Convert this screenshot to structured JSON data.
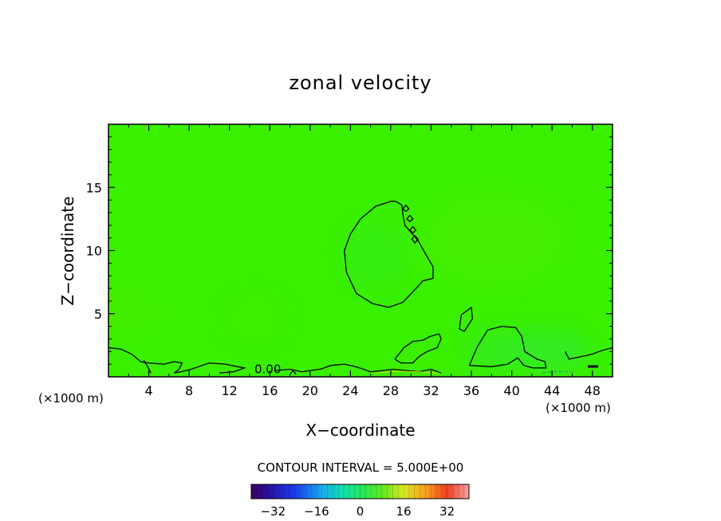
{
  "chart_data": {
    "type": "heatmap",
    "title": "zonal velocity",
    "xlabel": "X−coordinate",
    "ylabel": "Z−coordinate",
    "x_unit_left": "(×1000 m)",
    "x_unit_right": "(×1000 m)",
    "xlim": [
      0,
      50
    ],
    "ylim": [
      0,
      20
    ],
    "x_ticks": [
      4,
      8,
      12,
      16,
      20,
      24,
      28,
      32,
      36,
      40,
      44,
      48
    ],
    "y_ticks": [
      5,
      10,
      15
    ],
    "contour_interval_text": "CONTOUR INTERVAL = 5.000E+00",
    "contour_label": "0.00",
    "contour_label_pos": [
      15.8,
      0.6
    ],
    "field_background_color": "#39f000",
    "colorbar": {
      "range": [
        -40,
        40
      ],
      "ticks": [
        -32,
        -16,
        0,
        16,
        32
      ],
      "tick_labels": [
        "−32",
        "−16",
        "0",
        "16",
        "32"
      ]
    },
    "zero_contours": [
      {
        "name": "upper-blob",
        "points": [
          [
            28.0,
            13.9
          ],
          [
            26.5,
            13.5
          ],
          [
            25.0,
            12.5
          ],
          [
            24.0,
            11.3
          ],
          [
            23.4,
            10.0
          ],
          [
            23.6,
            8.3
          ],
          [
            24.6,
            6.6
          ],
          [
            26.2,
            5.8
          ],
          [
            27.8,
            5.5
          ],
          [
            29.2,
            5.9
          ],
          [
            30.4,
            6.9
          ],
          [
            31.2,
            7.6
          ],
          [
            32.2,
            7.8
          ],
          [
            32.2,
            8.7
          ],
          [
            31.4,
            9.8
          ],
          [
            30.7,
            10.8
          ],
          [
            29.4,
            12.0
          ],
          [
            29.2,
            12.9
          ],
          [
            29.1,
            13.6
          ],
          [
            28.5,
            13.9
          ],
          [
            28.0,
            13.9
          ]
        ]
      },
      {
        "name": "small-circle-1",
        "points": [
          [
            29.5,
            13.6
          ],
          [
            29.2,
            13.3
          ],
          [
            29.5,
            13.1
          ],
          [
            29.8,
            13.3
          ],
          [
            29.5,
            13.6
          ]
        ]
      },
      {
        "name": "small-circle-2",
        "points": [
          [
            29.9,
            12.8
          ],
          [
            29.6,
            12.5
          ],
          [
            29.9,
            12.3
          ],
          [
            30.2,
            12.5
          ],
          [
            29.9,
            12.8
          ]
        ]
      },
      {
        "name": "small-circle-3",
        "points": [
          [
            30.2,
            11.9
          ],
          [
            29.9,
            11.6
          ],
          [
            30.2,
            11.4
          ],
          [
            30.5,
            11.6
          ],
          [
            30.2,
            11.9
          ]
        ]
      },
      {
        "name": "small-circle-4",
        "points": [
          [
            30.4,
            11.2
          ],
          [
            30.1,
            10.9
          ],
          [
            30.4,
            10.6
          ],
          [
            30.7,
            10.9
          ],
          [
            30.4,
            11.2
          ]
        ]
      },
      {
        "name": "mid-blob",
        "points": [
          [
            36.0,
            5.5
          ],
          [
            36.1,
            4.6
          ],
          [
            35.3,
            3.6
          ],
          [
            34.8,
            3.8
          ],
          [
            35.0,
            4.9
          ],
          [
            36.0,
            5.5
          ]
        ]
      },
      {
        "name": "low-wave-1",
        "points": [
          [
            28.4,
            1.4
          ],
          [
            29.3,
            2.3
          ],
          [
            30.2,
            2.8
          ],
          [
            31.2,
            2.9
          ],
          [
            31.9,
            3.2
          ],
          [
            32.8,
            3.4
          ],
          [
            33.0,
            3.0
          ],
          [
            32.6,
            2.3
          ],
          [
            31.6,
            2.0
          ],
          [
            30.8,
            1.6
          ],
          [
            30.2,
            1.1
          ],
          [
            29.0,
            1.1
          ],
          [
            28.4,
            1.4
          ]
        ]
      },
      {
        "name": "low-wave-2",
        "points": [
          [
            35.8,
            0.9
          ],
          [
            36.6,
            2.4
          ],
          [
            37.6,
            3.7
          ],
          [
            39.0,
            4.0
          ],
          [
            40.4,
            3.9
          ],
          [
            41.0,
            3.2
          ],
          [
            41.3,
            2.0
          ],
          [
            42.5,
            1.4
          ],
          [
            43.3,
            1.2
          ],
          [
            43.4,
            0.7
          ],
          [
            42.1,
            0.7
          ],
          [
            41.2,
            0.9
          ],
          [
            40.6,
            1.5
          ],
          [
            39.6,
            1.0
          ],
          [
            38.0,
            0.8
          ],
          [
            35.8,
            0.9
          ]
        ]
      },
      {
        "name": "right-edge",
        "points": [
          [
            45.3,
            2.0
          ],
          [
            45.7,
            1.4
          ],
          [
            46.9,
            1.6
          ],
          [
            48.0,
            1.8
          ],
          [
            49.0,
            2.1
          ],
          [
            50.0,
            2.3
          ]
        ]
      },
      {
        "name": "left-edge",
        "points": [
          [
            0.0,
            2.3
          ],
          [
            1.2,
            2.2
          ],
          [
            2.3,
            1.8
          ],
          [
            3.2,
            1.2
          ],
          [
            4.0,
            1.1
          ],
          [
            5.5,
            1.0
          ],
          [
            6.5,
            1.2
          ],
          [
            7.3,
            1.1
          ],
          [
            7.0,
            0.6
          ],
          [
            6.5,
            0.3
          ],
          [
            7.2,
            0.4
          ],
          [
            8.2,
            0.6
          ],
          [
            10.0,
            1.1
          ],
          [
            11.6,
            1.0
          ],
          [
            12.8,
            0.8
          ],
          [
            13.5,
            0.7
          ],
          [
            12.4,
            0.4
          ],
          [
            11.0,
            0.3
          ]
        ]
      },
      {
        "name": "left-inner",
        "points": [
          [
            3.5,
            1.3
          ],
          [
            3.9,
            0.8
          ],
          [
            4.2,
            0.3
          ]
        ]
      },
      {
        "name": "bottom-run",
        "points": [
          [
            16.5,
            0.5
          ],
          [
            18.0,
            0.6
          ],
          [
            19.2,
            0.4
          ],
          [
            20.0,
            0.5
          ],
          [
            21.0,
            0.6
          ],
          [
            22.1,
            0.9
          ],
          [
            23.4,
            1.0
          ],
          [
            24.5,
            0.8
          ],
          [
            25.3,
            0.6
          ],
          [
            26.0,
            0.4
          ],
          [
            27.2,
            0.5
          ],
          [
            28.2,
            0.6
          ],
          [
            29.5,
            0.5
          ],
          [
            30.8,
            0.4
          ],
          [
            32.0,
            0.6
          ],
          [
            33.0,
            0.3
          ]
        ]
      },
      {
        "name": "small-loop-bottom",
        "points": [
          [
            18.0,
            0.2
          ],
          [
            18.3,
            0.5
          ],
          [
            18.6,
            0.2
          ]
        ]
      }
    ]
  }
}
